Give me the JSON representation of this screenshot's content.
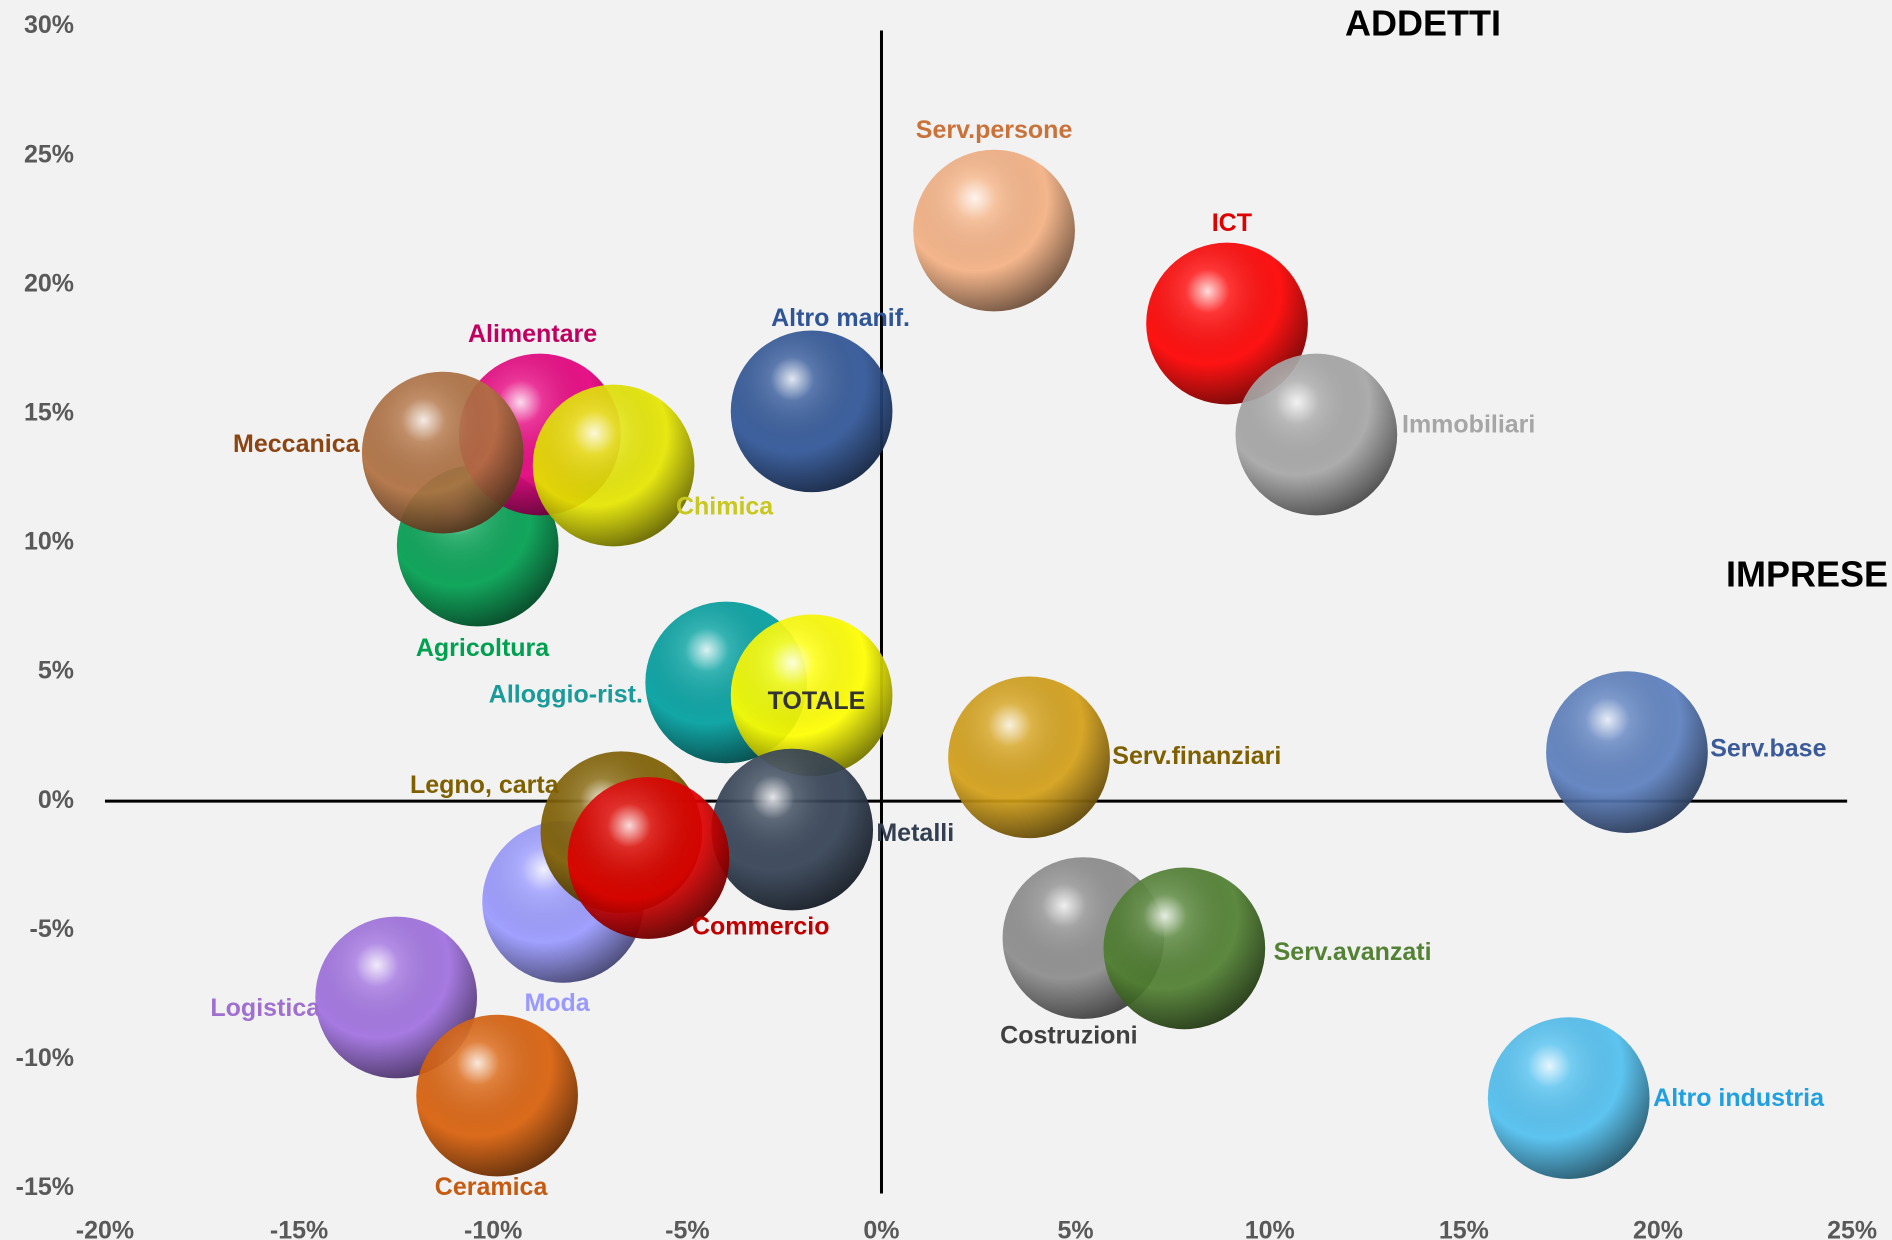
{
  "chart_data": {
    "type": "scatter",
    "x_label": "IMPRESE",
    "y_label": "ADDETTI",
    "xlim": [
      -20,
      25
    ],
    "ylim": [
      -15,
      30
    ],
    "xticks": [
      {
        "value": -20,
        "label": "-20%"
      },
      {
        "value": -15,
        "label": "-15%"
      },
      {
        "value": -10,
        "label": "-10%"
      },
      {
        "value": -5,
        "label": "-5%"
      },
      {
        "value": 0,
        "label": "0%"
      },
      {
        "value": 5,
        "label": "5%"
      },
      {
        "value": 10,
        "label": "10%"
      },
      {
        "value": 15,
        "label": "15%"
      },
      {
        "value": 20,
        "label": "20%"
      },
      {
        "value": 25,
        "label": "25%"
      }
    ],
    "yticks": [
      {
        "value": -15,
        "label": "-15%"
      },
      {
        "value": -10,
        "label": "-10%"
      },
      {
        "value": -5,
        "label": "-5%"
      },
      {
        "value": 0,
        "label": "0%"
      },
      {
        "value": 5,
        "label": "5%"
      },
      {
        "value": 10,
        "label": "10%"
      },
      {
        "value": 15,
        "label": "15%"
      },
      {
        "value": 20,
        "label": "20%"
      },
      {
        "value": 25,
        "label": "25%"
      },
      {
        "value": 30,
        "label": "30%"
      }
    ],
    "series": [
      {
        "name": "Serv.persone",
        "color": "#f4b183",
        "label_color": "#c9723a",
        "x": [
          2.9
        ],
        "values": [
          22.1
        ]
      },
      {
        "name": "ICT",
        "color": "#ff0000",
        "label_color": "#e00000",
        "x": [
          8.9
        ],
        "values": [
          18.5
        ]
      },
      {
        "name": "Immobiliari",
        "color": "#a6a6a6",
        "label_color": "#a6a6a6",
        "x": [
          11.2
        ],
        "values": [
          14.2
        ]
      },
      {
        "name": "Altro manif.",
        "color": "#2f5597",
        "label_color": "#2f5597",
        "x": [
          -1.8
        ],
        "values": [
          15.1
        ]
      },
      {
        "name": "Agricoltura",
        "color": "#00a050",
        "label_color": "#00a050",
        "x": [
          -10.4
        ],
        "values": [
          9.9
        ]
      },
      {
        "name": "Alimentare",
        "color": "#e6007e",
        "label_color": "#c00060",
        "x": [
          -8.8
        ],
        "values": [
          14.2
        ]
      },
      {
        "name": "Meccanica",
        "color": "#b07040",
        "label_color": "#8b4513",
        "x": [
          -11.3
        ],
        "values": [
          13.5
        ]
      },
      {
        "name": "Chimica",
        "color": "#e6e600",
        "label_color": "#c8c820",
        "x": [
          -6.9
        ],
        "values": [
          13.0
        ]
      },
      {
        "name": "Alloggio-rist.",
        "color": "#00a0a0",
        "label_color": "#1a9a9a",
        "x": [
          -4.0
        ],
        "values": [
          4.6
        ]
      },
      {
        "name": "TOTALE",
        "color": "#ffff00",
        "label_color": "#333333",
        "x": [
          -1.8
        ],
        "values": [
          4.1
        ]
      },
      {
        "name": "Serv.finanziari",
        "color": "#d4a017",
        "label_color": "#7f6000",
        "x": [
          3.8
        ],
        "values": [
          1.7
        ]
      },
      {
        "name": "Serv.base",
        "color": "#5b7fbf",
        "label_color": "#3a5a99",
        "x": [
          19.2
        ],
        "values": [
          1.9
        ]
      },
      {
        "name": "Moda",
        "color": "#9999ff",
        "label_color": "#9999ff",
        "x": [
          -8.2
        ],
        "values": [
          -3.9
        ]
      },
      {
        "name": "Legno, carta",
        "color": "#806000",
        "label_color": "#7f6000",
        "x": [
          -6.7
        ],
        "values": [
          -1.2
        ]
      },
      {
        "name": "Metalli",
        "color": "#334155",
        "label_color": "#333f50",
        "x": [
          -2.3
        ],
        "values": [
          -1.1
        ]
      },
      {
        "name": "Commercio",
        "color": "#e00000",
        "label_color": "#c00000",
        "x": [
          -6.0
        ],
        "values": [
          -2.2
        ]
      },
      {
        "name": "Costruzioni",
        "color": "#8c8c8c",
        "label_color": "#404040",
        "x": [
          5.2
        ],
        "values": [
          -5.3
        ]
      },
      {
        "name": "Serv.avanzati",
        "color": "#4f7f30",
        "label_color": "#548235",
        "x": [
          7.8
        ],
        "values": [
          -5.7
        ]
      },
      {
        "name": "Logistica",
        "color": "#a070e0",
        "label_color": "#a070d0",
        "x": [
          -12.5
        ],
        "values": [
          -7.6
        ]
      },
      {
        "name": "Ceramica",
        "color": "#d9600a",
        "label_color": "#c55a11",
        "x": [
          -9.9
        ],
        "values": [
          -11.4
        ]
      },
      {
        "name": "Altro industria",
        "color": "#50c0f0",
        "label_color": "#20a0e0",
        "x": [
          17.7
        ],
        "values": [
          -11.5
        ]
      }
    ]
  }
}
